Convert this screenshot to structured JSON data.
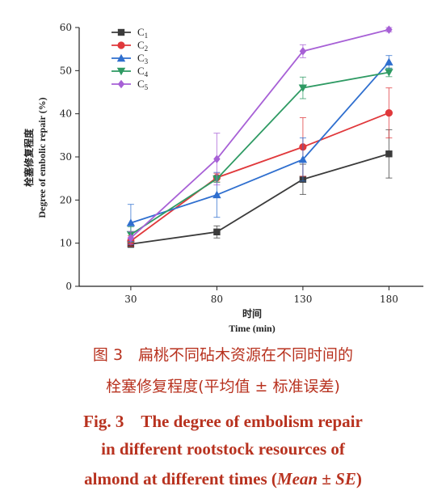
{
  "chart_data": {
    "type": "line",
    "x": [
      30,
      80,
      130,
      180
    ],
    "xlabel_cn": "时间",
    "xlabel_en": "Time (min)",
    "ylabel_cn": "栓塞修复程度",
    "ylabel_en": "Degree of embolic repair (%)",
    "ylim": [
      0,
      60
    ],
    "yticks": [
      0,
      10,
      20,
      30,
      40,
      50,
      60
    ],
    "xticks": [
      30,
      80,
      130,
      180
    ],
    "legend_position": "top-left",
    "series": [
      {
        "name": "C",
        "sub": "1",
        "color": "#3b3b3b",
        "marker": "square",
        "values": [
          9.8,
          12.6,
          24.8,
          30.7
        ],
        "err": [
          0.8,
          1.4,
          3.5,
          5.6
        ]
      },
      {
        "name": "C",
        "sub": "2",
        "color": "#e0383b",
        "marker": "circle",
        "values": [
          10.5,
          25.2,
          32.3,
          40.2
        ],
        "err": [
          1.2,
          1.0,
          6.8,
          5.8
        ]
      },
      {
        "name": "C",
        "sub": "3",
        "color": "#2f6fcf",
        "marker": "triangle-up",
        "values": [
          14.7,
          21.2,
          29.4,
          52.0
        ],
        "err": [
          4.3,
          5.2,
          5.0,
          1.5
        ]
      },
      {
        "name": "C",
        "sub": "4",
        "color": "#2e9a63",
        "marker": "triangle-down",
        "values": [
          12.0,
          24.9,
          46.0,
          49.6
        ],
        "err": [
          1.8,
          0.8,
          2.5,
          1.0
        ]
      },
      {
        "name": "C",
        "sub": "5",
        "color": "#a760d6",
        "marker": "diamond",
        "values": [
          11.2,
          29.5,
          54.5,
          59.5
        ],
        "err": [
          1.5,
          6.0,
          1.5,
          0.5
        ]
      }
    ]
  },
  "caption": {
    "line1": "图 3　扁桃不同砧木资源在不同时间的",
    "line2": "栓塞修复程度(平均值 ± 标准误差)",
    "line3": "Fig. 3　The degree of embolism repair",
    "line4": "in different rootstock resources of",
    "line5_pre": "almond at different times (",
    "line5_mean": "Mean",
    "line5_pm": " ± ",
    "line5_se": "SE",
    "line5_post": ")"
  }
}
